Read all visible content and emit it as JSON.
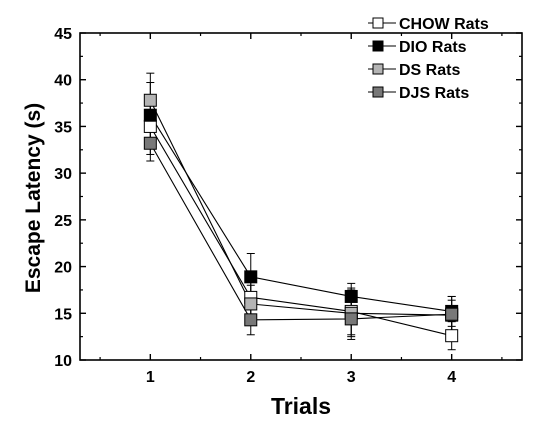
{
  "chart_data": {
    "type": "line",
    "xlabel": "Trials",
    "ylabel": "Escape Latency  (s)",
    "x": [
      1,
      2,
      3,
      4
    ],
    "xlim": [
      0.3,
      4.7
    ],
    "ylim": [
      10,
      45
    ],
    "yticks": [
      10,
      15,
      20,
      25,
      30,
      35,
      40,
      45
    ],
    "legend_position": "top-right",
    "series": [
      {
        "name": "CHOW Rats",
        "values": [
          35.0,
          16.7,
          15.2,
          12.6
        ],
        "errors": [
          3.0,
          2.0,
          2.5,
          1.5
        ],
        "marker_fill": "#ffffff"
      },
      {
        "name": "DIO Rats",
        "values": [
          36.2,
          18.9,
          16.8,
          15.2
        ],
        "errors": [
          3.5,
          2.5,
          1.4,
          1.6
        ],
        "marker_fill": "#000000"
      },
      {
        "name": "DS Rats",
        "values": [
          37.8,
          16.0,
          15.0,
          14.8
        ],
        "errors": [
          2.9,
          2.0,
          2.5,
          1.6
        ],
        "marker_fill": "#b4b4b4"
      },
      {
        "name": "DJS Rats",
        "values": [
          33.2,
          14.3,
          14.4,
          14.9
        ],
        "errors": [
          1.9,
          1.6,
          2.2,
          1.9
        ],
        "marker_fill": "#787878"
      }
    ]
  }
}
